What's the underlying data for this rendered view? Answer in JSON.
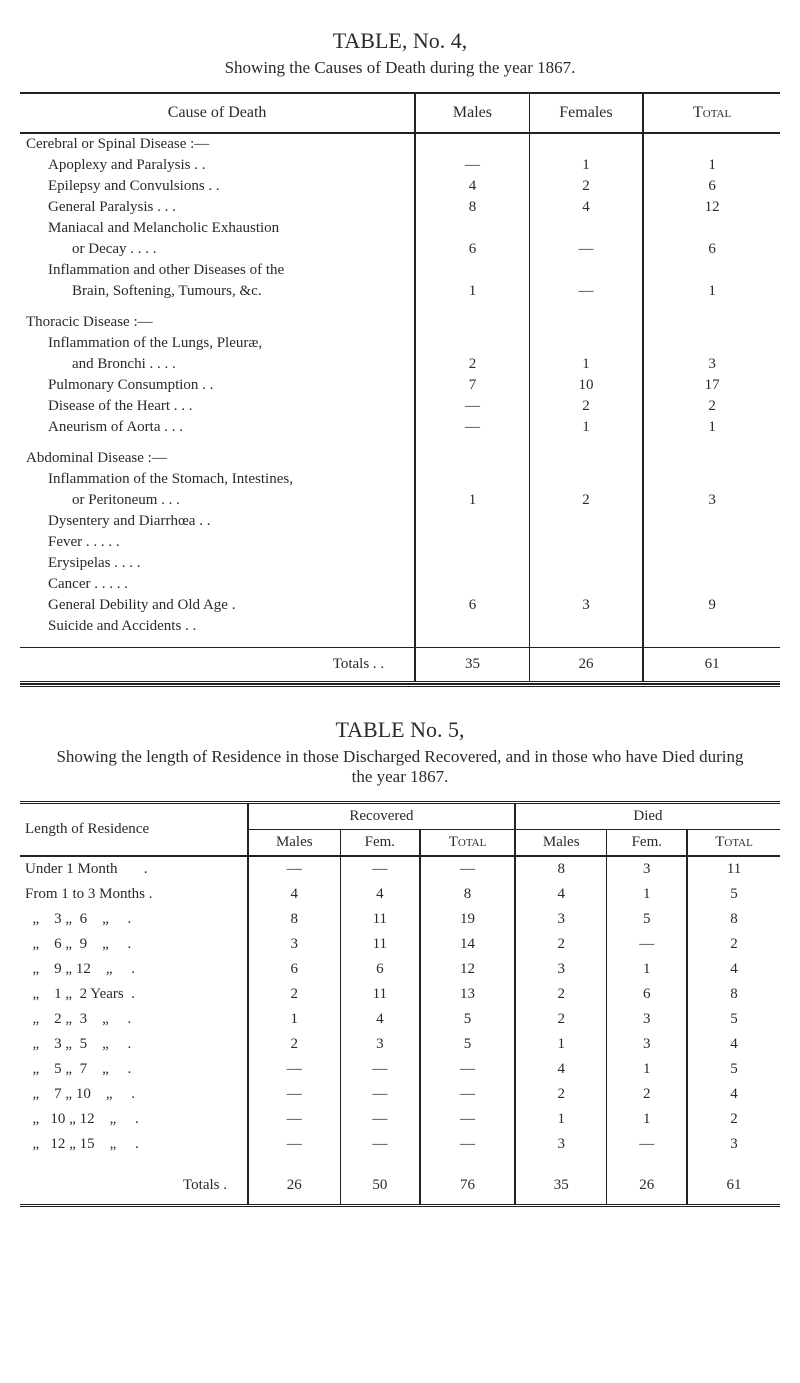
{
  "table4": {
    "title": "TABLE, No. 4,",
    "subtitle": "Showing the Causes of Death during the year 1867.",
    "headers": {
      "cause": "Cause of Death",
      "males": "Males",
      "females": "Females",
      "total": "Total"
    },
    "groups": [
      {
        "heading": "Cerebral or Spinal Disease :—",
        "rows": [
          {
            "label": "Apoplexy and Paralysis    .      .",
            "males": "—",
            "females": "1",
            "total": "1"
          },
          {
            "label": "Epilepsy and Convulsions  .      .",
            "males": "4",
            "females": "2",
            "total": "6"
          },
          {
            "label": "General Paralysis      .      .      .",
            "males": "8",
            "females": "4",
            "total": "12"
          },
          {
            "label": "Maniacal and Melancholic Exhaustion",
            "males": "",
            "females": "",
            "total": ""
          },
          {
            "label_indent2": true,
            "label": "or Decay      .      .      .      .",
            "males": "6",
            "females": "—",
            "total": "6"
          },
          {
            "label": "Inflammation and other Diseases of the",
            "males": "",
            "females": "",
            "total": ""
          },
          {
            "label_indent2": true,
            "label": "Brain, Softening, Tumours, &c.",
            "males": "1",
            "females": "—",
            "total": "1"
          }
        ]
      },
      {
        "heading": "Thoracic Disease :—",
        "rows": [
          {
            "label": "Inflammation of the Lungs, Pleuræ,",
            "males": "",
            "females": "",
            "total": ""
          },
          {
            "label_indent2": true,
            "label": "and Bronchi .     .     .     .",
            "males": "2",
            "females": "1",
            "total": "3"
          },
          {
            "label": "Pulmonary Consumption    .      .",
            "males": "7",
            "females": "10",
            "total": "17"
          },
          {
            "label": "Disease of the Heart .     .     .",
            "males": "—",
            "females": "2",
            "total": "2"
          },
          {
            "label": "Aneurism of Aorta    .     .     .",
            "males": "—",
            "females": "1",
            "total": "1"
          }
        ]
      },
      {
        "heading": "Abdominal Disease :—",
        "rows": [
          {
            "label": "Inflammation of the Stomach, Intestines,",
            "males": "",
            "females": "",
            "total": ""
          },
          {
            "label_indent2": true,
            "label": "or Peritoneum     .      .      .",
            "males": "1",
            "females": "2",
            "total": "3"
          },
          {
            "label": "Dysentery and Diarrhœa    .      .",
            "males": "",
            "females": "",
            "total": ""
          },
          {
            "label": "Fever      .      .      .      .      .",
            "males": "",
            "females": "",
            "total": ""
          },
          {
            "label": "Erysipelas      .      .      .      .",
            "males": "",
            "females": "",
            "total": ""
          },
          {
            "label": "Cancer    .     .     .     .     .",
            "males": "",
            "females": "",
            "total": ""
          },
          {
            "label": "General Debility and Old Age    .",
            "males": "6",
            "females": "3",
            "total": "9"
          },
          {
            "label": "Suicide and Accidents      .      .",
            "males": "",
            "females": "",
            "total": ""
          }
        ]
      }
    ],
    "totals": {
      "label": "Totals .      .",
      "males": "35",
      "females": "26",
      "total": "61"
    }
  },
  "table5": {
    "title": "TABLE No. 5,",
    "subtitle": "Showing the length of Residence in those Discharged Recovered, and in those who have Died during the year 1867.",
    "headers": {
      "length": "Length of Residence",
      "recovered": "Recovered",
      "died": "Died",
      "males": "Males",
      "fem": "Fem.",
      "total": "Total"
    },
    "rows": [
      {
        "label": "Under 1 Month       .",
        "rm": "—",
        "rf": "—",
        "rt": "—",
        "dm": "8",
        "df": "3",
        "dt": "11"
      },
      {
        "label": "From 1 to 3 Months .",
        "rm": "4",
        "rf": "4",
        "rt": "8",
        "dm": "4",
        "df": "1",
        "dt": "5"
      },
      {
        "label": "  „    3 „  6    „     .",
        "rm": "8",
        "rf": "11",
        "rt": "19",
        "dm": "3",
        "df": "5",
        "dt": "8"
      },
      {
        "label": "  „    6 „  9    „     .",
        "rm": "3",
        "rf": "11",
        "rt": "14",
        "dm": "2",
        "df": "—",
        "dt": "2"
      },
      {
        "label": "  „    9 „ 12    „     .",
        "rm": "6",
        "rf": "6",
        "rt": "12",
        "dm": "3",
        "df": "1",
        "dt": "4"
      },
      {
        "label": "  „    1 „  2 Years  .",
        "rm": "2",
        "rf": "11",
        "rt": "13",
        "dm": "2",
        "df": "6",
        "dt": "8"
      },
      {
        "label": "  „    2 „  3    „     .",
        "rm": "1",
        "rf": "4",
        "rt": "5",
        "dm": "2",
        "df": "3",
        "dt": "5"
      },
      {
        "label": "  „    3 „  5    „     .",
        "rm": "2",
        "rf": "3",
        "rt": "5",
        "dm": "1",
        "df": "3",
        "dt": "4"
      },
      {
        "label": "  „    5 „  7    „     .",
        "rm": "—",
        "rf": "—",
        "rt": "—",
        "dm": "4",
        "df": "1",
        "dt": "5"
      },
      {
        "label": "  „    7 „ 10    „     .",
        "rm": "—",
        "rf": "—",
        "rt": "—",
        "dm": "2",
        "df": "2",
        "dt": "4"
      },
      {
        "label": "  „   10 „ 12    „     .",
        "rm": "—",
        "rf": "—",
        "rt": "—",
        "dm": "1",
        "df": "1",
        "dt": "2"
      },
      {
        "label": "  „   12 „ 15    „     .",
        "rm": "—",
        "rf": "—",
        "rt": "—",
        "dm": "3",
        "df": "—",
        "dt": "3"
      }
    ],
    "totals": {
      "label": "Totals  .",
      "rm": "26",
      "rf": "50",
      "rt": "76",
      "dm": "35",
      "df": "26",
      "dt": "61"
    }
  }
}
